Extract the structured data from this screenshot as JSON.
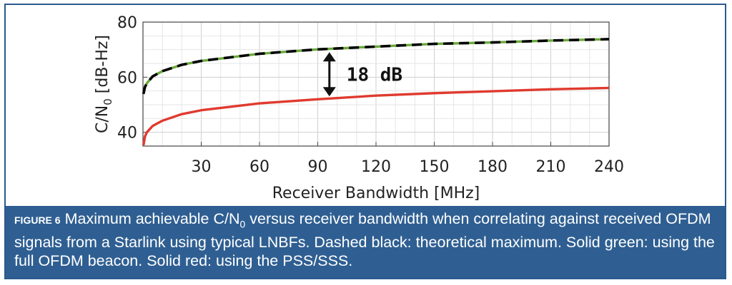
{
  "chart_data": {
    "type": "line",
    "xlabel": "Receiver Bandwidth [MHz]",
    "ylabel_main": "C/N",
    "ylabel_sub": "0",
    "ylabel_unit": "[dB-Hz]",
    "xlim": [
      0,
      240
    ],
    "ylim": [
      35,
      80
    ],
    "xticks": [
      30,
      60,
      90,
      120,
      150,
      180,
      210,
      240
    ],
    "yticks": [
      40,
      60,
      80
    ],
    "grid": true,
    "series": [
      {
        "name": "theoretical maximum",
        "style": "dashed",
        "color": "#000000",
        "x": [
          0.25,
          1,
          2,
          5,
          10,
          20,
          30,
          60,
          90,
          120,
          150,
          180,
          210,
          240
        ],
        "y": [
          53.9,
          56.4,
          57.8,
          60.3,
          62.2,
          64.5,
          65.9,
          68.5,
          70.1,
          71.1,
          72.1,
          72.6,
          73.3,
          73.8
        ]
      },
      {
        "name": "full OFDM beacon",
        "style": "solid",
        "color": "#6aaa3a",
        "x": [
          0.25,
          1,
          2,
          5,
          10,
          20,
          30,
          60,
          90,
          120,
          150,
          180,
          210,
          240
        ],
        "y": [
          53.9,
          56.4,
          57.8,
          60.3,
          62.2,
          64.5,
          65.9,
          68.5,
          70.1,
          71.1,
          72.1,
          72.6,
          73.3,
          73.8
        ]
      },
      {
        "name": "PSS/SSS",
        "style": "solid",
        "color": "#e03a2f",
        "x": [
          0.25,
          1,
          2,
          5,
          10,
          20,
          30,
          60,
          90,
          120,
          150,
          180,
          210,
          240
        ],
        "y": [
          35.3,
          38.4,
          40.0,
          42.3,
          44.2,
          46.6,
          48.0,
          50.5,
          52.0,
          53.3,
          54.2,
          54.9,
          55.6,
          56.1
        ]
      }
    ],
    "annotation": {
      "text": "18 dB",
      "x": 96,
      "y_top": 70.1,
      "y_bottom": 52.0
    }
  },
  "caption": {
    "label": "FIGURE 6",
    "text": "Maximum achievable C/N",
    "text_sub": "0",
    "text_rest": " versus receiver bandwidth when correlating against received OFDM signals from a Starlink using typical LNBFs. Dashed black: theoretical maximum. Solid green: using the full OFDM beacon. Solid red: using the PSS/SSS."
  }
}
